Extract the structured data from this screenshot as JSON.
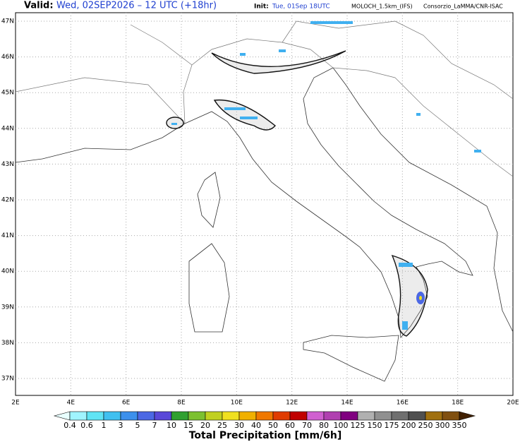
{
  "header": {
    "valid_label": "Valid:",
    "valid_time": "Wed, 02SEP2026 – 12 UTC (+18hr)",
    "init_label": "Init:",
    "init_time": "Tue, 01Sep 18UTC",
    "model": "MOLOCH_1.5km_(IFS)",
    "credit": "Consorzio_LaMMA/CNR-ISAC"
  },
  "map": {
    "lat_labels": [
      "47N",
      "46N",
      "45N",
      "44N",
      "43N",
      "42N",
      "41N",
      "40N",
      "39N",
      "38N",
      "37N"
    ],
    "lon_labels": [
      "2E",
      "4E",
      "6E",
      "8E",
      "10E",
      "12E",
      "14E",
      "16E",
      "18E",
      "20E"
    ]
  },
  "colorbar": {
    "labels": [
      "0.4",
      "0.6",
      "1",
      "3",
      "5",
      "7",
      "10",
      "15",
      "20",
      "25",
      "30",
      "40",
      "50",
      "60",
      "70",
      "80",
      "100",
      "125",
      "150",
      "175",
      "200",
      "250",
      "300",
      "350"
    ],
    "colors": [
      "#e8ffff",
      "#a0f4ff",
      "#60e4f4",
      "#40c0f0",
      "#3c90ec",
      "#4c68e4",
      "#5a48d8",
      "#30a030",
      "#7cc030",
      "#c0d020",
      "#f0e020",
      "#f0b000",
      "#f07800",
      "#e03c00",
      "#c00000",
      "#d060d0",
      "#b040b0",
      "#800080",
      "#b0b0b0",
      "#909090",
      "#707070",
      "#505050",
      "#a07010",
      "#805010",
      "#603010",
      "#402000"
    ],
    "title": "Total Precipitation [mm/6h]"
  }
}
